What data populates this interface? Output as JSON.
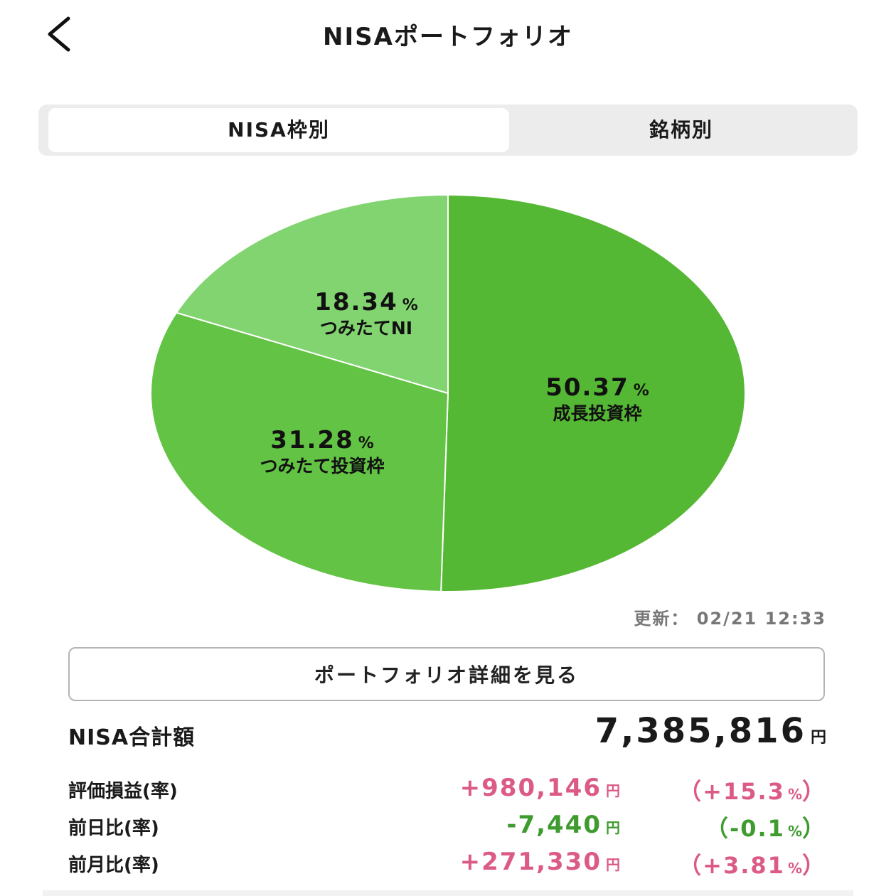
{
  "header": {
    "title": "NISAポートフォリオ",
    "back_icon": "chevron-left-icon"
  },
  "tabs": [
    {
      "label": "NISA枠別",
      "active": true
    },
    {
      "label": "銘柄別",
      "active": false
    }
  ],
  "chart_data": {
    "type": "pie",
    "slices": [
      {
        "name": "成長投資枠",
        "percent": 50.37,
        "pct_text": "50.37",
        "color": "#55b834"
      },
      {
        "name": "つみたて投資枠",
        "percent": 31.28,
        "pct_text": "31.28",
        "color": "#63c344"
      },
      {
        "name": "つみたてNI",
        "percent": 18.34,
        "pct_text": "18.34",
        "color": "#82d470"
      }
    ],
    "percent_sign": "%",
    "start": "12 o'clock",
    "direction": "clockwise"
  },
  "updated": {
    "label": "更新：",
    "value": "02/21 12:33"
  },
  "detail_button": {
    "label": "ポートフォリオ詳細を見る"
  },
  "total": {
    "label": "NISA合計額",
    "value": "7,385,816",
    "unit": "円"
  },
  "stats": [
    {
      "label": "評価損益(率)",
      "value": "+980,146",
      "unit": "円",
      "rate_open": "（",
      "rate": "+15.3",
      "rate_unit": "%",
      "rate_close": "）",
      "trend": "pos"
    },
    {
      "label": "前日比(率)",
      "value": "-7,440",
      "unit": "円",
      "rate_open": "（",
      "rate": "-0.1",
      "rate_unit": "%",
      "rate_close": "）",
      "trend": "neg"
    },
    {
      "label": "前月比(率)",
      "value": "+271,330",
      "unit": "円",
      "rate_open": "（",
      "rate": "+3.81",
      "rate_unit": "%",
      "rate_close": "）",
      "trend": "pos"
    }
  ],
  "colors": {
    "positive": "#dc5a86",
    "negative": "#3e9b2e",
    "accent": "#55b834"
  }
}
